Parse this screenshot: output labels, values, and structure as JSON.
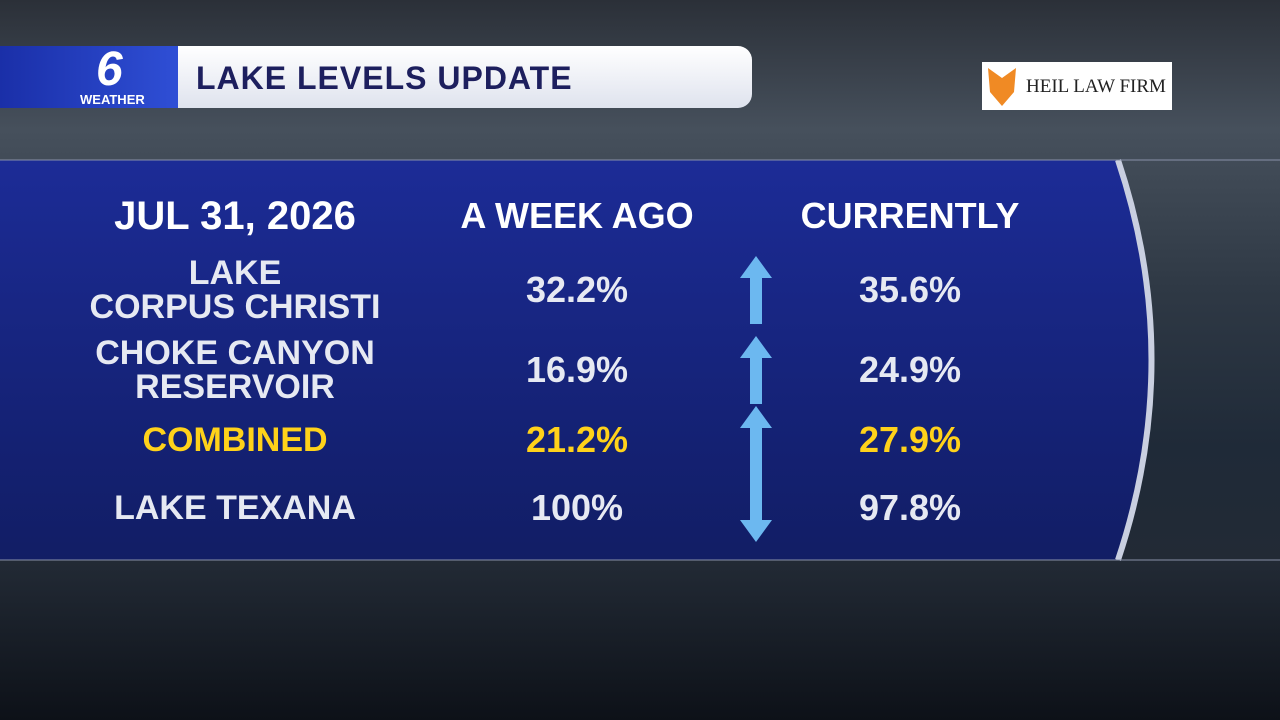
{
  "header": {
    "logo_number": "6",
    "logo_label": "WEATHER",
    "title": "LAKE LEVELS UPDATE",
    "sponsor": "HEIL LAW FIRM"
  },
  "table": {
    "columns": [
      "JUL 31, 2026",
      "A WEEK AGO",
      "CURRENTLY"
    ],
    "rows": [
      {
        "name": [
          "LAKE",
          "CORPUS CHRISTI"
        ],
        "week_ago": "32.2%",
        "currently": "35.6%",
        "trend": "up",
        "color": "#e6e9f2"
      },
      {
        "name": [
          "CHOKE CANYON",
          "RESERVOIR"
        ],
        "week_ago": "16.9%",
        "currently": "24.9%",
        "trend": "up",
        "color": "#e6e9f2"
      },
      {
        "name": [
          "COMBINED"
        ],
        "week_ago": "21.2%",
        "currently": "27.9%",
        "trend": "up",
        "color": "#ffd21a"
      },
      {
        "name": [
          "LAKE TEXANA"
        ],
        "week_ago": "100%",
        "currently": "97.8%",
        "trend": "down",
        "color": "#e6e9f2"
      }
    ]
  }
}
